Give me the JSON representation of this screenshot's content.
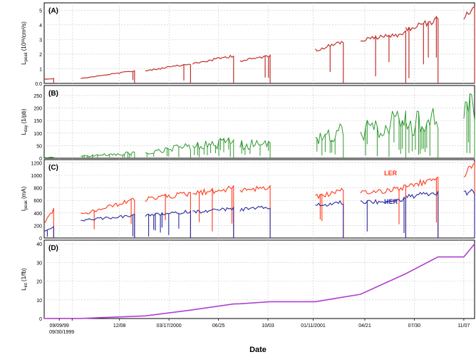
{
  "figure": {
    "xlabel": "Date",
    "date_ticks": [
      "09/09/99",
      "09/30/1999",
      "12/08",
      "03/17/2000",
      "06/25",
      "10/03",
      "01/11/2001",
      "04/21",
      "07/30",
      "11/07"
    ]
  },
  "colors": {
    "A": "#c0302c",
    "B": "#2f9a2f",
    "LER": "#ff3a1a",
    "HER": "#2a2aa0",
    "D": "#b040d0",
    "grid": "#c8c8c8"
  },
  "chart_data": [
    {
      "type": "line",
      "panel": "(A)",
      "ylabel_main": "L",
      "ylabel_sub": "peak",
      "ylabel_unit": "(10³³/cm²/s)",
      "yticks": [
        "0.0",
        "1",
        "2",
        "3",
        "4",
        "5"
      ],
      "ylim": [
        0,
        5.5
      ],
      "grid": true,
      "segments": [
        {
          "x0": 0.0,
          "x1": 0.022,
          "v0": 0.3,
          "v1": 0.35
        },
        {
          "x0": 0.085,
          "x1": 0.21,
          "v0": 0.35,
          "v1": 0.9
        },
        {
          "x0": 0.235,
          "x1": 0.34,
          "v0": 0.9,
          "v1": 1.4
        },
        {
          "x0": 0.345,
          "x1": 0.44,
          "v0": 1.4,
          "v1": 2.0
        },
        {
          "x0": 0.455,
          "x1": 0.525,
          "v0": 1.6,
          "v1": 2.0
        },
        {
          "x0": 0.63,
          "x1": 0.695,
          "v0": 2.4,
          "v1": 3.0
        },
        {
          "x0": 0.735,
          "x1": 0.84,
          "v0": 3.1,
          "v1": 3.6
        },
        {
          "x0": 0.84,
          "x1": 0.915,
          "v0": 3.9,
          "v1": 4.6
        },
        {
          "x0": 0.975,
          "x1": 1.0,
          "v0": 4.8,
          "v1": 5.3
        }
      ]
    },
    {
      "type": "line",
      "panel": "(B)",
      "ylabel_main": "L",
      "ylabel_sub": "day",
      "ylabel_unit": "(1/pb)",
      "yticks": [
        "0",
        "50",
        "100",
        "150",
        "200",
        "250"
      ],
      "ylim": [
        0,
        290
      ],
      "grid": true,
      "segments": [
        {
          "x0": 0.0,
          "x1": 0.022,
          "v0": 3,
          "v1": 5
        },
        {
          "x0": 0.085,
          "x1": 0.21,
          "v0": 10,
          "v1": 30
        },
        {
          "x0": 0.235,
          "x1": 0.34,
          "v0": 25,
          "v1": 65
        },
        {
          "x0": 0.345,
          "x1": 0.44,
          "v0": 60,
          "v1": 100
        },
        {
          "x0": 0.455,
          "x1": 0.525,
          "v0": 70,
          "v1": 95
        },
        {
          "x0": 0.63,
          "x1": 0.695,
          "v0": 110,
          "v1": 150
        },
        {
          "x0": 0.735,
          "x1": 0.84,
          "v0": 150,
          "v1": 210
        },
        {
          "x0": 0.84,
          "x1": 0.915,
          "v0": 170,
          "v1": 230
        },
        {
          "x0": 0.975,
          "x1": 1.0,
          "v0": 220,
          "v1": 285
        }
      ]
    },
    {
      "type": "line",
      "panel": "(C)",
      "ylabel_main": "I",
      "ylabel_sub": "peak",
      "ylabel_unit": "(mA)",
      "yticks": [
        "0",
        "200",
        "400",
        "600",
        "800",
        "1000",
        "1200"
      ],
      "ylim": [
        0,
        1250
      ],
      "grid": true,
      "series": [
        {
          "name": "LER",
          "segments": [
            {
              "x0": 0.0,
              "x1": 0.022,
              "v0": 250,
              "v1": 480
            },
            {
              "x0": 0.085,
              "x1": 0.21,
              "v0": 400,
              "v1": 650
            },
            {
              "x0": 0.235,
              "x1": 0.34,
              "v0": 650,
              "v1": 760
            },
            {
              "x0": 0.345,
              "x1": 0.44,
              "v0": 760,
              "v1": 840
            },
            {
              "x0": 0.455,
              "x1": 0.525,
              "v0": 820,
              "v1": 860
            },
            {
              "x0": 0.63,
              "x1": 0.695,
              "v0": 700,
              "v1": 800
            },
            {
              "x0": 0.735,
              "x1": 0.84,
              "v0": 750,
              "v1": 860
            },
            {
              "x0": 0.84,
              "x1": 0.915,
              "v0": 880,
              "v1": 1000
            },
            {
              "x0": 0.975,
              "x1": 1.0,
              "v0": 1100,
              "v1": 1200
            }
          ]
        },
        {
          "name": "HER",
          "segments": [
            {
              "x0": 0.0,
              "x1": 0.022,
              "v0": 120,
              "v1": 180
            },
            {
              "x0": 0.085,
              "x1": 0.21,
              "v0": 300,
              "v1": 380
            },
            {
              "x0": 0.235,
              "x1": 0.34,
              "v0": 380,
              "v1": 450
            },
            {
              "x0": 0.345,
              "x1": 0.44,
              "v0": 440,
              "v1": 500
            },
            {
              "x0": 0.455,
              "x1": 0.525,
              "v0": 480,
              "v1": 520
            },
            {
              "x0": 0.63,
              "x1": 0.695,
              "v0": 550,
              "v1": 600
            },
            {
              "x0": 0.735,
              "x1": 0.84,
              "v0": 600,
              "v1": 650
            },
            {
              "x0": 0.84,
              "x1": 0.915,
              "v0": 700,
              "v1": 760
            },
            {
              "x0": 0.975,
              "x1": 1.0,
              "v0": 760,
              "v1": 780
            }
          ]
        }
      ]
    },
    {
      "type": "line",
      "panel": "(D)",
      "ylabel_main": "L",
      "ylabel_sub": "int",
      "ylabel_unit": "(1/fb)",
      "yticks": [
        "0",
        "10",
        "20",
        "30",
        "40"
      ],
      "ylim": [
        0,
        42
      ],
      "grid": true,
      "points": [
        [
          0.0,
          0.0
        ],
        [
          0.022,
          0.05
        ],
        [
          0.085,
          0.05
        ],
        [
          0.21,
          1.2
        ],
        [
          0.235,
          1.4
        ],
        [
          0.34,
          4.5
        ],
        [
          0.44,
          7.8
        ],
        [
          0.455,
          7.9
        ],
        [
          0.525,
          9.0
        ],
        [
          0.63,
          9.0
        ],
        [
          0.695,
          11.5
        ],
        [
          0.735,
          13.0
        ],
        [
          0.84,
          24.0
        ],
        [
          0.915,
          33.0
        ],
        [
          0.975,
          33.0
        ],
        [
          1.0,
          40.0
        ]
      ]
    }
  ]
}
